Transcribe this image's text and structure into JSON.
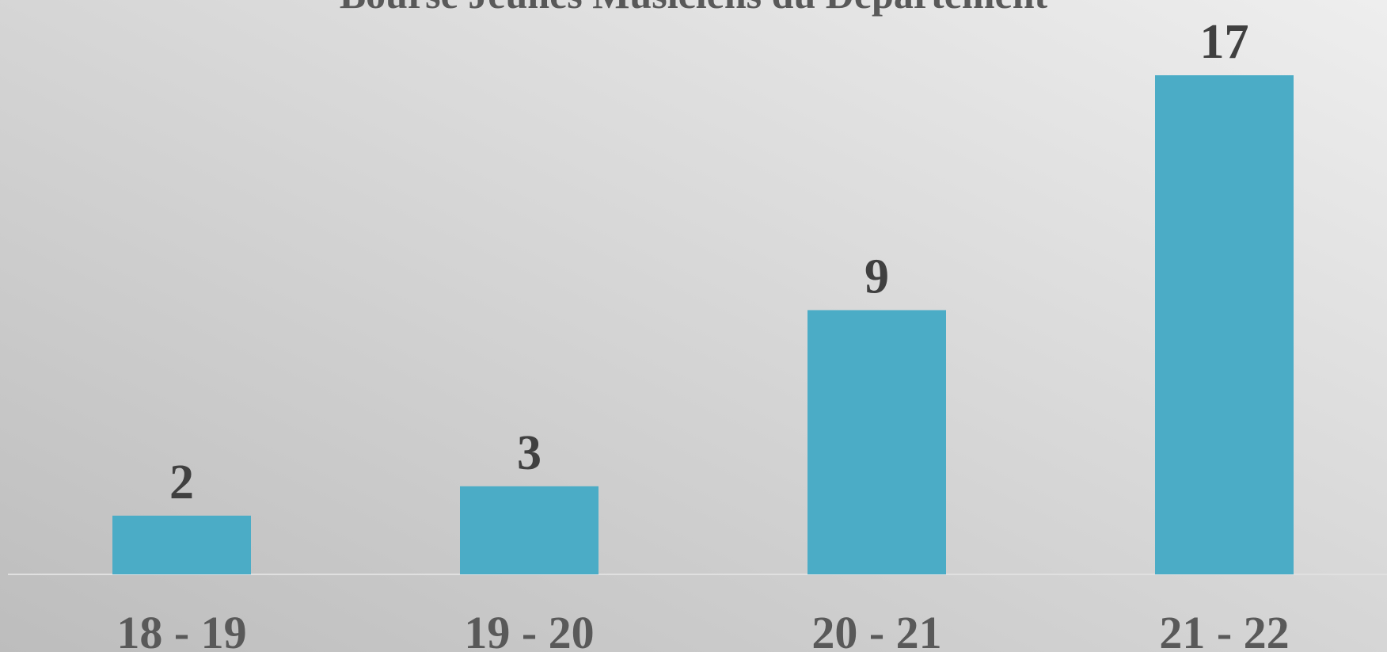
{
  "chart_data": {
    "type": "bar",
    "title": "Bourse Jeunes Musiciens du Département",
    "categories": [
      "18 - 19",
      "19 - 20",
      "20 - 21",
      "21 - 22"
    ],
    "values": [
      2,
      3,
      9,
      17
    ],
    "color": "#4bacc6"
  }
}
